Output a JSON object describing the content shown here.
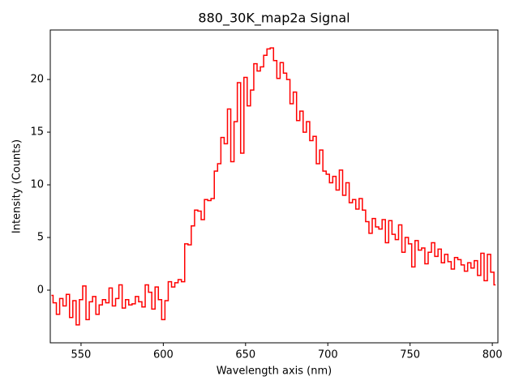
{
  "chart_data": {
    "type": "line",
    "drawstyle": "steps-mid",
    "title": "880_30K_map2a Signal",
    "x_label": "Wavelength axis (nm)",
    "y_label": "Intensity (Counts)",
    "xlim": [
      531.3,
      803.4
    ],
    "ylim": [
      -5,
      24.7
    ],
    "xticks": [
      550,
      600,
      650,
      700,
      750,
      800
    ],
    "yticks": [
      0,
      5,
      10,
      15,
      20
    ],
    "grid": false,
    "x": [
      532,
      534,
      536,
      538,
      540,
      542,
      544,
      546,
      548,
      550,
      552,
      554,
      556,
      558,
      560,
      562,
      564,
      566,
      568,
      570,
      572,
      574,
      576,
      578,
      580,
      582,
      584,
      586,
      588,
      590,
      592,
      594,
      596,
      598,
      600,
      602,
      604,
      606,
      608,
      610,
      612,
      614,
      616,
      618,
      620,
      622,
      624,
      626,
      628,
      630,
      632,
      634,
      636,
      638,
      640,
      642,
      644,
      646,
      648,
      650,
      652,
      654,
      656,
      658,
      660,
      662,
      664,
      666,
      668,
      670,
      672,
      674,
      676,
      678,
      680,
      682,
      684,
      686,
      688,
      690,
      692,
      694,
      696,
      698,
      700,
      702,
      704,
      706,
      708,
      710,
      712,
      714,
      716,
      718,
      720,
      722,
      724,
      726,
      728,
      730,
      732,
      734,
      736,
      738,
      740,
      742,
      744,
      746,
      748,
      750,
      752,
      754,
      756,
      758,
      760,
      762,
      764,
      766,
      768,
      770,
      772,
      774,
      776,
      778,
      780,
      782,
      784,
      786,
      788,
      790,
      792,
      794,
      796,
      798,
      800,
      802
    ],
    "series": [
      {
        "name": "signal",
        "color": "#ff0000",
        "values": [
          -0.5,
          -1.2,
          -2.3,
          -0.8,
          -1.5,
          -0.4,
          -2.6,
          -1.0,
          -3.3,
          -0.9,
          0.4,
          -2.8,
          -1.1,
          -0.6,
          -2.3,
          -1.4,
          -0.9,
          -1.2,
          0.2,
          -1.5,
          -0.8,
          0.5,
          -1.7,
          -0.9,
          -1.4,
          -1.3,
          -0.6,
          -1.1,
          -1.6,
          0.5,
          -0.2,
          -1.8,
          0.3,
          -0.9,
          -2.8,
          -1.0,
          0.8,
          0.3,
          0.7,
          1.0,
          0.8,
          4.4,
          4.3,
          6.1,
          7.6,
          7.5,
          6.7,
          8.6,
          8.5,
          8.7,
          11.3,
          12.0,
          14.5,
          13.9,
          17.2,
          12.2,
          16.0,
          19.7,
          13.0,
          20.2,
          17.5,
          19.0,
          21.5,
          20.8,
          21.2,
          22.3,
          22.9,
          23.0,
          21.8,
          20.1,
          21.6,
          20.6,
          20.0,
          17.7,
          18.8,
          16.1,
          17.0,
          15.0,
          16.0,
          14.2,
          14.6,
          12.0,
          13.3,
          11.3,
          11.0,
          10.2,
          10.8,
          9.5,
          11.4,
          9.0,
          10.2,
          8.3,
          8.6,
          7.7,
          8.7,
          7.6,
          6.5,
          5.4,
          6.8,
          6.0,
          5.8,
          6.7,
          4.5,
          6.6,
          5.3,
          4.8,
          6.2,
          3.6,
          5.0,
          4.4,
          2.2,
          4.7,
          3.8,
          4.0,
          2.5,
          3.6,
          4.5,
          3.2,
          3.9,
          2.6,
          3.4,
          2.7,
          2.0,
          3.1,
          2.9,
          2.4,
          1.8,
          2.6,
          2.1,
          2.8,
          1.4,
          3.5,
          0.9,
          3.4,
          1.7,
          0.5
        ]
      }
    ]
  }
}
